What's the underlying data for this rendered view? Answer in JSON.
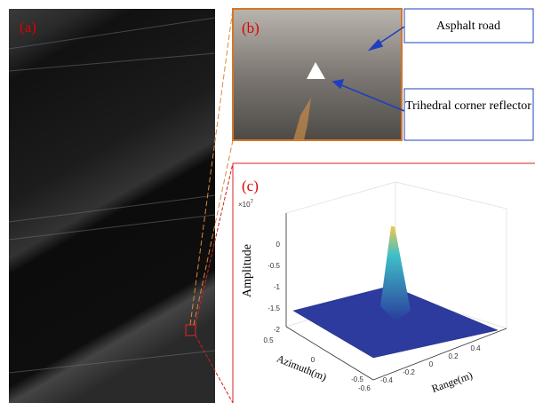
{
  "panels": {
    "a": {
      "label": "(a)"
    },
    "b": {
      "label": "(b)",
      "callouts": [
        "Asphalt road",
        "Trihedral corner reflector"
      ]
    },
    "c": {
      "label": "(c)",
      "scale": "×10",
      "scale_exp": "7",
      "z_label": "Amplitude",
      "x_label": "Azimuth(m)",
      "y_label": "Range(m)",
      "z_ticks": [
        "0",
        "-0.5",
        "-1",
        "-1.5",
        "-2"
      ],
      "x_ticks": [
        "0.5",
        "0",
        "-0.5"
      ],
      "y_ticks": [
        "-0.6",
        "-0.4",
        "-0.2",
        "0",
        "0.2",
        "0.4"
      ]
    }
  }
}
